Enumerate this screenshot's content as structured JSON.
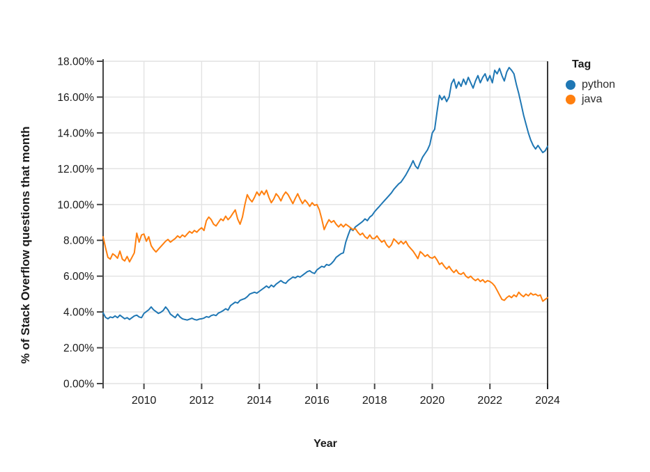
{
  "chart_data": {
    "type": "line",
    "title": "",
    "xlabel": "Year",
    "ylabel": "% of Stack Overflow questions that month",
    "legend_title": "Tag",
    "legend_position": "right",
    "grid": true,
    "x_start": 2008.583,
    "x_end": 2024.0,
    "x_step": 0.08333,
    "x_unit": "monthly",
    "ylim": [
      0,
      18
    ],
    "ytick_values": [
      0,
      2,
      4,
      6,
      8,
      10,
      12,
      14,
      16,
      18
    ],
    "ytick_labels": [
      "0.00%",
      "2.00%",
      "4.00%",
      "6.00%",
      "8.00%",
      "10.00%",
      "12.00%",
      "14.00%",
      "16.00%",
      "18.00%"
    ],
    "xtick_values": [
      2010,
      2012,
      2014,
      2016,
      2018,
      2020,
      2022,
      2024
    ],
    "xtick_labels": [
      "2010",
      "2012",
      "2014",
      "2016",
      "2018",
      "2020",
      "2022",
      "2024"
    ],
    "colors": {
      "python": "#1f77b4",
      "java": "#ff7f0e",
      "axis": "#444444",
      "grid": "#e2e2e2",
      "text": "#1a1a1a"
    },
    "series": [
      {
        "name": "python",
        "color": "#1f77b4",
        "values": [
          3.95,
          3.7,
          3.62,
          3.72,
          3.68,
          3.78,
          3.68,
          3.82,
          3.72,
          3.62,
          3.68,
          3.58,
          3.68,
          3.78,
          3.82,
          3.72,
          3.68,
          3.92,
          4.02,
          4.12,
          4.28,
          4.12,
          4.02,
          3.92,
          3.98,
          4.08,
          4.28,
          4.12,
          3.88,
          3.78,
          3.68,
          3.88,
          3.72,
          3.62,
          3.58,
          3.55,
          3.6,
          3.65,
          3.58,
          3.55,
          3.6,
          3.62,
          3.66,
          3.74,
          3.7,
          3.8,
          3.84,
          3.8,
          3.94,
          4.0,
          4.08,
          4.18,
          4.1,
          4.35,
          4.45,
          4.55,
          4.5,
          4.65,
          4.7,
          4.75,
          4.85,
          5.0,
          5.05,
          5.1,
          5.05,
          5.15,
          5.25,
          5.35,
          5.45,
          5.35,
          5.5,
          5.4,
          5.55,
          5.65,
          5.75,
          5.65,
          5.6,
          5.75,
          5.85,
          5.95,
          5.9,
          6.0,
          5.95,
          6.05,
          6.15,
          6.25,
          6.3,
          6.2,
          6.15,
          6.35,
          6.45,
          6.55,
          6.5,
          6.65,
          6.6,
          6.7,
          6.85,
          7.05,
          7.15,
          7.25,
          7.3,
          7.9,
          8.3,
          8.65,
          8.55,
          8.75,
          8.85,
          8.95,
          9.05,
          9.2,
          9.1,
          9.3,
          9.4,
          9.6,
          9.75,
          9.9,
          10.05,
          10.2,
          10.35,
          10.5,
          10.65,
          10.85,
          11.0,
          11.15,
          11.25,
          11.45,
          11.65,
          11.9,
          12.15,
          12.45,
          12.15,
          12.0,
          12.35,
          12.65,
          12.85,
          13.05,
          13.35,
          14.0,
          14.2,
          15.2,
          16.1,
          15.85,
          16.05,
          15.75,
          16.0,
          16.75,
          17.0,
          16.5,
          16.85,
          16.6,
          17.0,
          16.7,
          17.1,
          16.8,
          16.5,
          16.9,
          17.2,
          16.8,
          17.1,
          17.3,
          16.9,
          17.2,
          16.8,
          17.5,
          17.3,
          17.6,
          17.2,
          16.9,
          17.4,
          17.65,
          17.5,
          17.3,
          16.7,
          16.2,
          15.6,
          15.0,
          14.5,
          14.0,
          13.6,
          13.3,
          13.1,
          13.3,
          13.1,
          12.9,
          13.0,
          13.25
        ]
      },
      {
        "name": "java",
        "color": "#ff7f0e",
        "values": [
          8.2,
          7.6,
          7.05,
          6.95,
          7.25,
          7.15,
          7.0,
          7.4,
          6.95,
          6.85,
          7.1,
          6.8,
          7.05,
          7.3,
          8.4,
          7.9,
          8.3,
          8.35,
          7.95,
          8.2,
          7.7,
          7.5,
          7.35,
          7.5,
          7.65,
          7.8,
          7.95,
          8.05,
          7.9,
          8.0,
          8.1,
          8.25,
          8.15,
          8.3,
          8.2,
          8.35,
          8.5,
          8.4,
          8.55,
          8.45,
          8.6,
          8.7,
          8.55,
          9.1,
          9.3,
          9.15,
          8.9,
          8.8,
          9.0,
          9.2,
          9.1,
          9.35,
          9.15,
          9.3,
          9.5,
          9.7,
          9.2,
          8.9,
          9.3,
          10.0,
          10.55,
          10.3,
          10.15,
          10.4,
          10.7,
          10.5,
          10.75,
          10.55,
          10.8,
          10.4,
          10.1,
          10.3,
          10.6,
          10.45,
          10.2,
          10.5,
          10.7,
          10.55,
          10.3,
          10.05,
          10.35,
          10.6,
          10.3,
          10.05,
          10.25,
          10.1,
          9.9,
          10.1,
          9.95,
          10.0,
          9.7,
          9.2,
          8.6,
          8.9,
          9.15,
          9.0,
          9.1,
          8.9,
          8.75,
          8.9,
          8.75,
          8.9,
          8.8,
          8.7,
          8.6,
          8.65,
          8.45,
          8.3,
          8.4,
          8.2,
          8.1,
          8.3,
          8.1,
          8.1,
          8.25,
          8.05,
          7.9,
          8.0,
          7.75,
          7.6,
          7.75,
          8.08,
          7.95,
          7.8,
          7.95,
          7.8,
          7.95,
          7.7,
          7.55,
          7.4,
          7.2,
          6.98,
          7.37,
          7.25,
          7.1,
          7.2,
          7.05,
          7.0,
          7.1,
          6.9,
          6.65,
          6.75,
          6.55,
          6.4,
          6.55,
          6.35,
          6.2,
          6.35,
          6.15,
          6.1,
          6.2,
          6.0,
          5.9,
          6.0,
          5.85,
          5.75,
          5.85,
          5.7,
          5.8,
          5.65,
          5.75,
          5.7,
          5.6,
          5.45,
          5.2,
          4.95,
          4.7,
          4.65,
          4.8,
          4.9,
          4.8,
          4.95,
          4.85,
          5.1,
          4.95,
          4.85,
          5.0,
          4.9,
          5.05,
          4.95,
          5.0,
          4.9,
          4.95,
          4.6,
          4.7,
          4.8
        ]
      }
    ]
  }
}
